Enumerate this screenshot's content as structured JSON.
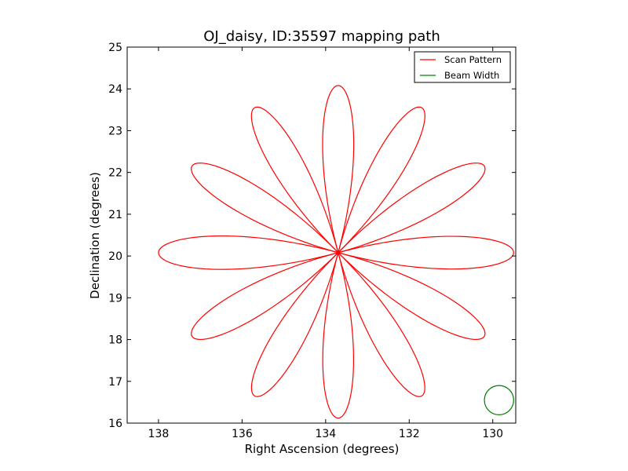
{
  "chart_data": {
    "type": "line",
    "title": "OJ_daisy, ID:35597 mapping path",
    "xlabel": "Right Ascension (degrees)",
    "ylabel": "Declination (degrees)",
    "xlim": [
      138.75,
      129.45
    ],
    "ylim": [
      16,
      25
    ],
    "x_inverted": true,
    "xticks": [
      138,
      136,
      134,
      132,
      130
    ],
    "yticks": [
      16,
      17,
      18,
      19,
      20,
      21,
      22,
      23,
      24,
      25
    ],
    "grid": false,
    "legend": {
      "placement": "top-right"
    },
    "series": [
      {
        "name": "Scan Pattern",
        "color": "#ff0000",
        "kind": "rose_curve",
        "center": [
          133.7,
          20.08
        ],
        "petals": 12,
        "petal_tips": [
          [
            133.7,
            24.08
          ],
          [
            131.7,
            23.55
          ],
          [
            130.2,
            22.15
          ],
          [
            129.5,
            20.08
          ],
          [
            130.2,
            18.08
          ],
          [
            131.7,
            16.65
          ],
          [
            133.7,
            16.12
          ],
          [
            135.7,
            16.65
          ],
          [
            137.2,
            18.08
          ],
          [
            138.0,
            20.08
          ],
          [
            137.2,
            22.15
          ],
          [
            135.7,
            23.55
          ]
        ]
      },
      {
        "name": "Beam Width",
        "color": "#008000",
        "kind": "circle",
        "center": [
          129.85,
          16.55
        ],
        "radius": 0.35
      }
    ]
  }
}
